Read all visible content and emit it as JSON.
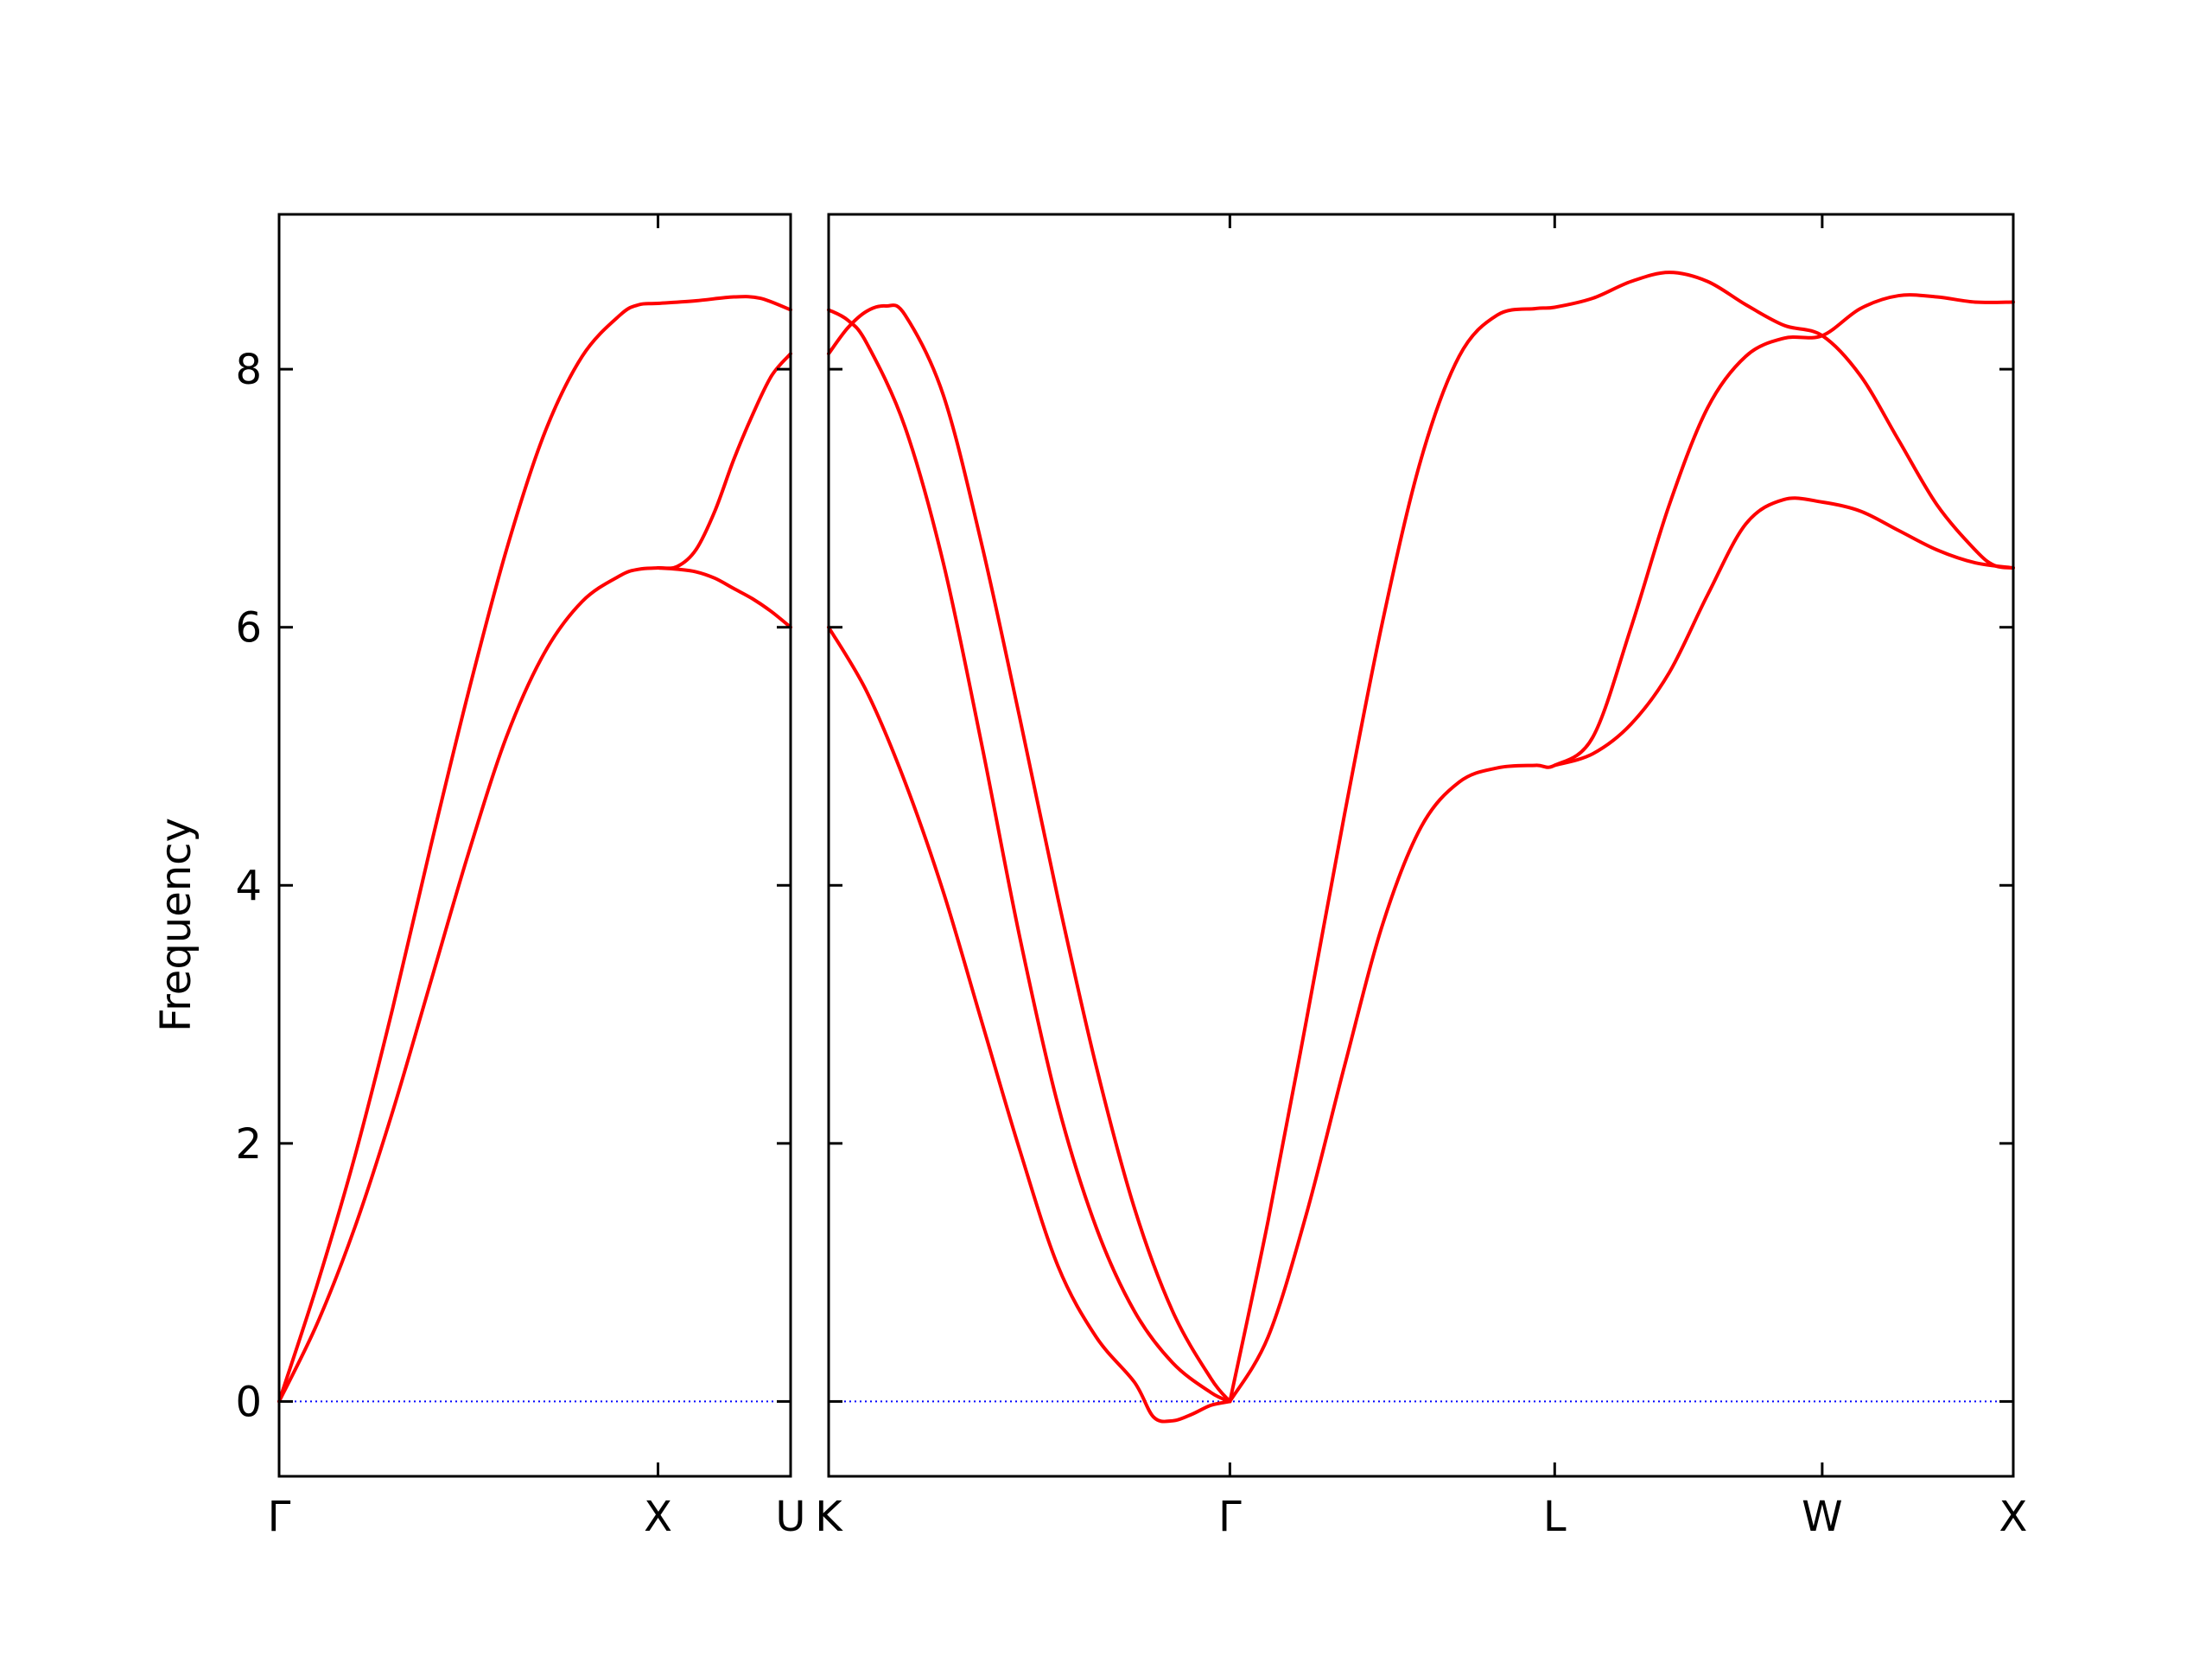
{
  "chart_data": {
    "type": "line",
    "title": "",
    "xlabel": "",
    "ylabel": "Frequency",
    "ylim": [
      -0.58,
      9.2
    ],
    "yticks": [
      0,
      2,
      4,
      6,
      8
    ],
    "grid": false,
    "line_color": "#ff0000",
    "zero_line_color": "#0000ff",
    "axis_color": "#000000",
    "panels": [
      {
        "path": "Γ–X–U",
        "xlim": [
          0.0,
          1.35
        ],
        "ticks": [
          {
            "label": "Γ",
            "x": 0.0
          },
          {
            "label": "X",
            "x": 1.0
          },
          {
            "label": "U",
            "x": 1.35
          }
        ],
        "series": [
          {
            "values": [
              [
                0.0,
                0.0
              ],
              [
                0.1,
                0.9
              ],
              [
                0.2,
                1.9
              ],
              [
                0.3,
                3.05
              ],
              [
                0.4,
                4.3
              ],
              [
                0.5,
                5.5
              ],
              [
                0.6,
                6.6
              ],
              [
                0.7,
                7.5
              ],
              [
                0.8,
                8.1
              ],
              [
                0.9,
                8.42
              ],
              [
                0.95,
                8.5
              ],
              [
                1.0,
                8.51
              ],
              [
                1.1,
                8.53
              ],
              [
                1.2,
                8.56
              ],
              [
                1.27,
                8.55
              ],
              [
                1.35,
                8.46
              ]
            ]
          },
          {
            "values": [
              [
                0.0,
                0.0
              ],
              [
                0.1,
                0.6
              ],
              [
                0.2,
                1.35
              ],
              [
                0.3,
                2.25
              ],
              [
                0.4,
                3.25
              ],
              [
                0.5,
                4.25
              ],
              [
                0.6,
                5.15
              ],
              [
                0.7,
                5.8
              ],
              [
                0.8,
                6.2
              ],
              [
                0.9,
                6.4
              ],
              [
                0.95,
                6.45
              ],
              [
                1.0,
                6.46
              ],
              [
                1.05,
                6.47
              ],
              [
                1.1,
                6.6
              ],
              [
                1.15,
                6.9
              ],
              [
                1.2,
                7.3
              ],
              [
                1.25,
                7.65
              ],
              [
                1.3,
                7.95
              ],
              [
                1.35,
                8.12
              ]
            ]
          },
          {
            "values": [
              [
                1.0,
                6.46
              ],
              [
                1.05,
                6.45
              ],
              [
                1.1,
                6.43
              ],
              [
                1.15,
                6.38
              ],
              [
                1.2,
                6.3
              ],
              [
                1.25,
                6.22
              ],
              [
                1.3,
                6.12
              ],
              [
                1.35,
                6.0
              ]
            ]
          }
        ]
      },
      {
        "path": "K–Γ–L–W–X",
        "xlim": [
          0.0,
          3.1
        ],
        "ticks": [
          {
            "label": "K",
            "x": 0.0
          },
          {
            "label": "Γ",
            "x": 1.05
          },
          {
            "label": "L",
            "x": 1.9
          },
          {
            "label": "W",
            "x": 2.6
          },
          {
            "label": "X",
            "x": 3.1
          }
        ],
        "series": [
          {
            "values": [
              [
                0.0,
                8.12
              ],
              [
                0.05,
                8.32
              ],
              [
                0.1,
                8.45
              ],
              [
                0.15,
                8.49
              ],
              [
                0.2,
                8.42
              ],
              [
                0.3,
                7.8
              ],
              [
                0.4,
                6.65
              ],
              [
                0.5,
                5.3
              ],
              [
                0.6,
                3.9
              ],
              [
                0.7,
                2.6
              ],
              [
                0.8,
                1.5
              ],
              [
                0.9,
                0.7
              ],
              [
                1.0,
                0.18
              ],
              [
                1.05,
                0.0
              ]
            ]
          },
          {
            "values": [
              [
                0.0,
                8.46
              ],
              [
                0.05,
                8.38
              ],
              [
                0.1,
                8.2
              ],
              [
                0.2,
                7.55
              ],
              [
                0.3,
                6.5
              ],
              [
                0.4,
                5.1
              ],
              [
                0.5,
                3.6
              ],
              [
                0.6,
                2.3
              ],
              [
                0.7,
                1.35
              ],
              [
                0.8,
                0.7
              ],
              [
                0.9,
                0.3
              ],
              [
                1.0,
                0.07
              ],
              [
                1.05,
                0.0
              ]
            ]
          },
          {
            "values": [
              [
                0.0,
                6.0
              ],
              [
                0.1,
                5.5
              ],
              [
                0.2,
                4.8
              ],
              [
                0.3,
                3.95
              ],
              [
                0.4,
                2.95
              ],
              [
                0.5,
                1.95
              ],
              [
                0.6,
                1.05
              ],
              [
                0.7,
                0.5
              ],
              [
                0.8,
                0.15
              ],
              [
                0.85,
                -0.12
              ],
              [
                0.9,
                -0.15
              ],
              [
                0.95,
                -0.1
              ],
              [
                1.0,
                -0.03
              ],
              [
                1.05,
                0.0
              ]
            ]
          },
          {
            "values": [
              [
                1.05,
                0.0
              ],
              [
                1.15,
                1.4
              ],
              [
                1.25,
                2.95
              ],
              [
                1.35,
                4.55
              ],
              [
                1.45,
                6.05
              ],
              [
                1.55,
                7.3
              ],
              [
                1.65,
                8.1
              ],
              [
                1.75,
                8.42
              ],
              [
                1.85,
                8.47
              ],
              [
                1.9,
                8.48
              ],
              [
                2.0,
                8.55
              ],
              [
                2.1,
                8.68
              ],
              [
                2.2,
                8.75
              ],
              [
                2.3,
                8.68
              ],
              [
                2.4,
                8.5
              ],
              [
                2.5,
                8.34
              ],
              [
                2.6,
                8.26
              ],
              [
                2.7,
                7.95
              ],
              [
                2.8,
                7.45
              ],
              [
                2.9,
                6.95
              ],
              [
                3.0,
                6.6
              ],
              [
                3.05,
                6.48
              ],
              [
                3.1,
                6.46
              ]
            ]
          },
          {
            "values": [
              [
                1.05,
                0.0
              ],
              [
                1.15,
                0.5
              ],
              [
                1.25,
                1.45
              ],
              [
                1.35,
                2.6
              ],
              [
                1.45,
                3.7
              ],
              [
                1.55,
                4.45
              ],
              [
                1.65,
                4.8
              ],
              [
                1.75,
                4.91
              ],
              [
                1.85,
                4.93
              ],
              [
                1.9,
                4.93
              ],
              [
                2.0,
                5.15
              ],
              [
                2.1,
                6.0
              ],
              [
                2.2,
                6.95
              ],
              [
                2.3,
                7.7
              ],
              [
                2.4,
                8.1
              ],
              [
                2.5,
                8.24
              ],
              [
                2.6,
                8.26
              ],
              [
                2.7,
                8.47
              ],
              [
                2.8,
                8.57
              ],
              [
                2.9,
                8.56
              ],
              [
                3.0,
                8.52
              ],
              [
                3.1,
                8.52
              ]
            ]
          },
          {
            "values": [
              [
                1.9,
                4.93
              ],
              [
                2.0,
                5.02
              ],
              [
                2.1,
                5.25
              ],
              [
                2.2,
                5.65
              ],
              [
                2.3,
                6.25
              ],
              [
                2.4,
                6.8
              ],
              [
                2.5,
                6.99
              ],
              [
                2.6,
                6.97
              ],
              [
                2.7,
                6.9
              ],
              [
                2.8,
                6.75
              ],
              [
                2.9,
                6.6
              ],
              [
                3.0,
                6.5
              ],
              [
                3.1,
                6.46
              ]
            ]
          }
        ]
      }
    ]
  }
}
